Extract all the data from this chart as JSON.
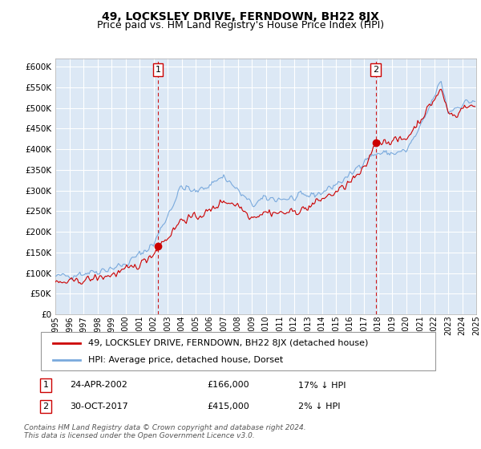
{
  "title": "49, LOCKSLEY DRIVE, FERNDOWN, BH22 8JX",
  "subtitle": "Price paid vs. HM Land Registry's House Price Index (HPI)",
  "legend_line1": "49, LOCKSLEY DRIVE, FERNDOWN, BH22 8JX (detached house)",
  "legend_line2": "HPI: Average price, detached house, Dorset",
  "annotation1_label": "1",
  "annotation1_date": "24-APR-2002",
  "annotation1_price": "£166,000",
  "annotation1_hpi": "17% ↓ HPI",
  "annotation2_label": "2",
  "annotation2_date": "30-OCT-2017",
  "annotation2_price": "£415,000",
  "annotation2_hpi": "2% ↓ HPI",
  "footer": "Contains HM Land Registry data © Crown copyright and database right 2024.\nThis data is licensed under the Open Government Licence v3.0.",
  "ylim": [
    0,
    620000
  ],
  "yticks": [
    0,
    50000,
    100000,
    150000,
    200000,
    250000,
    300000,
    350000,
    400000,
    450000,
    500000,
    550000,
    600000
  ],
  "hpi_color": "#7aaadd",
  "price_color": "#cc0000",
  "annotation_color": "#cc0000",
  "bg_color": "#dce8f5",
  "grid_color": "#ffffff",
  "purchase1_x": 2002.31,
  "purchase1_y": 166000,
  "purchase2_x": 2017.83,
  "purchase2_y": 415000,
  "xmin": 1995,
  "xmax": 2025
}
